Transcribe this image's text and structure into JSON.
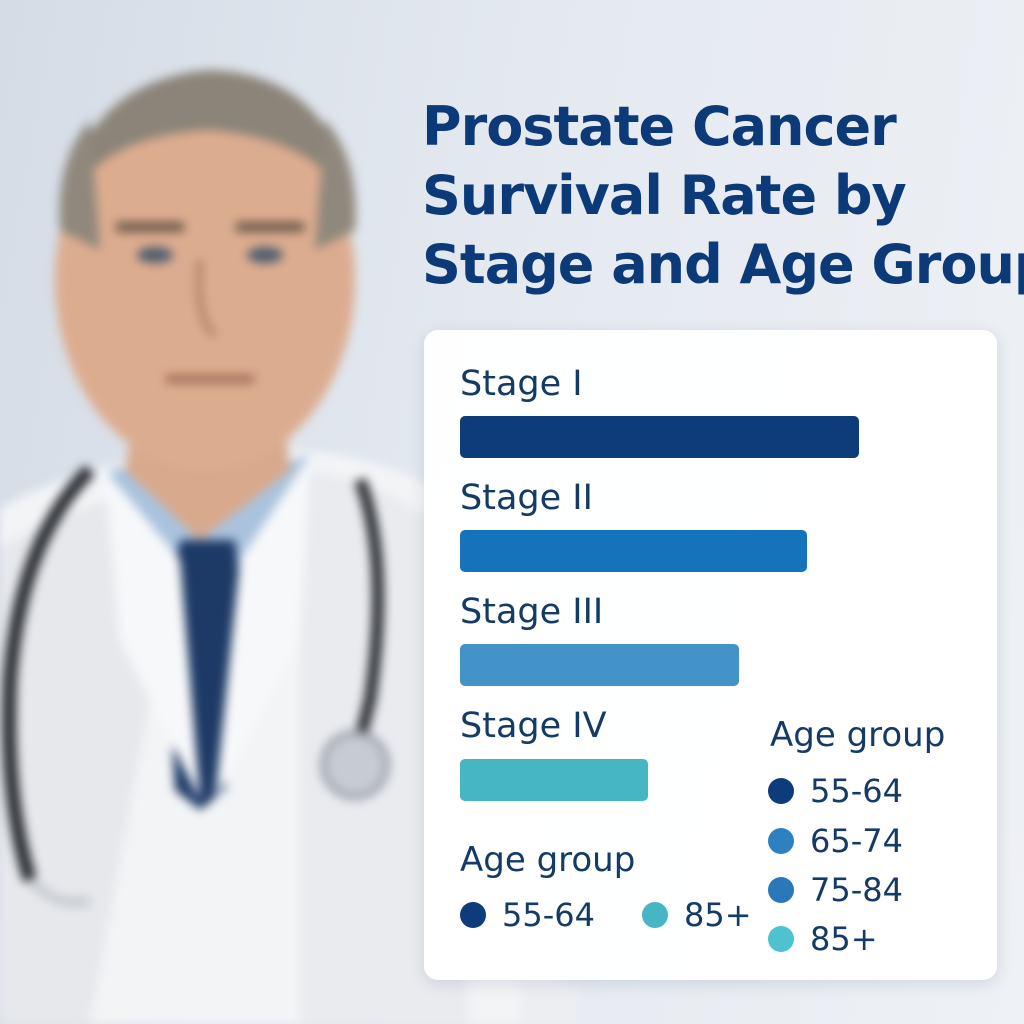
{
  "title_lines": [
    "Prostate Cancer",
    "Survival Rate by",
    "Stage and Age Group"
  ],
  "chart_data": {
    "type": "bar",
    "orientation": "horizontal",
    "title": "Prostate Cancer Survival Rate by Stage and Age Group",
    "categories": [
      "Stage I",
      "Stage II",
      "Stage III",
      "Stage IV"
    ],
    "values": [
      100,
      87,
      70,
      47
    ],
    "colors": [
      "#0e3b79",
      "#1473ba",
      "#4393c9",
      "#46b6c4"
    ],
    "xlabel": "",
    "ylabel": "",
    "grid": false
  },
  "legend_bottom": {
    "title": "Age group",
    "items": [
      {
        "label": "55-64",
        "color": "#0e3b79"
      },
      {
        "label": "85+",
        "color": "#46b6c4"
      }
    ]
  },
  "legend_right": {
    "title": "Age group",
    "items": [
      {
        "label": "55-64",
        "color": "#0e3b79"
      },
      {
        "label": "65-74",
        "color": "#2f80c0"
      },
      {
        "label": "75-84",
        "color": "#2a78b9"
      },
      {
        "label": "85+",
        "color": "#4cc3cf"
      }
    ]
  }
}
